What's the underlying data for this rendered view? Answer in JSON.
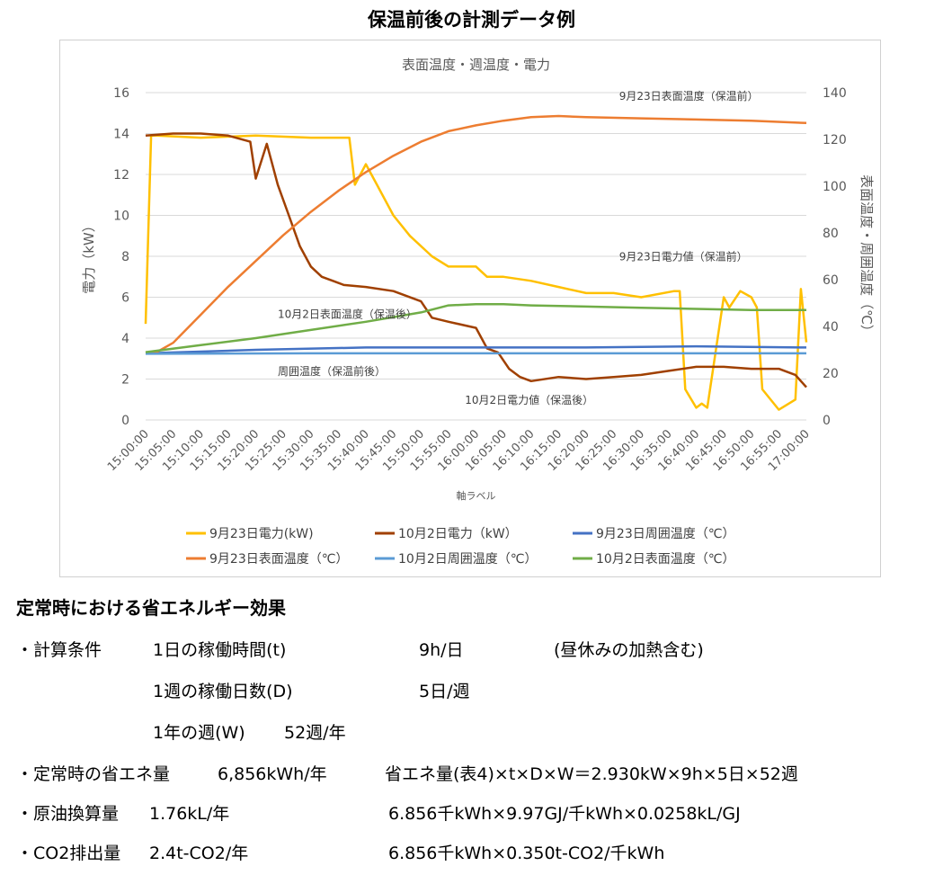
{
  "page_title": "保温前後の計測データ例",
  "chart_data": {
    "type": "line",
    "title": "表面温度・週温度・電力",
    "xlabel": "軸ラベル",
    "ylabel_left": "電力（kW）",
    "ylabel_right": "表面温度・周囲温度（℃）",
    "ylim_left": [
      0,
      16
    ],
    "ylim_right": [
      0,
      140
    ],
    "yticks_left": [
      "0",
      "2",
      "4",
      "6",
      "8",
      "10",
      "12",
      "14",
      "16"
    ],
    "yticks_right": [
      "0",
      "20",
      "40",
      "60",
      "80",
      "100",
      "120",
      "140"
    ],
    "grid": true,
    "legend_position": "bottom",
    "x_ticks": [
      "15:00:00",
      "15:05:00",
      "15:10:00",
      "15:15:00",
      "15:20:00",
      "15:25:00",
      "15:30:00",
      "15:35:00",
      "15:40:00",
      "15:45:00",
      "15:50:00",
      "15:55:00",
      "16:00:00",
      "16:05:00",
      "16:10:00",
      "16:15:00",
      "16:20:00",
      "16:25:00",
      "16:30:00",
      "16:35:00",
      "16:40:00",
      "16:45:00",
      "16:50:00",
      "16:55:00",
      "17:00:00"
    ],
    "x_minutes": [
      0,
      120
    ],
    "series": [
      {
        "name": "9月23日電力(kW)",
        "axis": "left",
        "color": "#FFC000",
        "x": [
          0,
          1,
          2,
          10,
          20,
          30,
          37,
          38,
          40,
          42,
          45,
          48,
          52,
          55,
          60,
          62,
          65,
          70,
          75,
          80,
          85,
          90,
          96,
          97,
          98,
          100,
          101,
          102,
          105,
          106,
          108,
          110,
          111,
          112,
          115,
          118,
          119,
          120
        ],
        "values": [
          4.7,
          13.9,
          13.9,
          13.8,
          13.9,
          13.8,
          13.8,
          11.5,
          12.5,
          11.5,
          10.0,
          9.0,
          8.0,
          7.5,
          7.5,
          7.0,
          7.0,
          6.8,
          6.5,
          6.2,
          6.2,
          6.0,
          6.3,
          6.3,
          1.5,
          0.6,
          0.8,
          0.6,
          6.0,
          5.5,
          6.3,
          6.0,
          5.5,
          1.5,
          0.5,
          1.0,
          6.4,
          3.8
        ]
      },
      {
        "name": "10月2日電力（kW）",
        "axis": "left",
        "color": "#A04000",
        "x": [
          0,
          5,
          10,
          15,
          19,
          20,
          22,
          23,
          24,
          26,
          28,
          30,
          32,
          34,
          36,
          40,
          45,
          50,
          52,
          55,
          60,
          62,
          64,
          66,
          68,
          70,
          75,
          80,
          85,
          90,
          95,
          100,
          105,
          110,
          115,
          118,
          120
        ],
        "values": [
          13.9,
          14.0,
          14.0,
          13.9,
          13.6,
          11.8,
          13.5,
          12.5,
          11.5,
          10.0,
          8.5,
          7.5,
          7.0,
          6.8,
          6.6,
          6.5,
          6.3,
          5.8,
          5.0,
          4.8,
          4.5,
          3.5,
          3.3,
          2.5,
          2.1,
          1.9,
          2.1,
          2.0,
          2.1,
          2.2,
          2.4,
          2.6,
          2.6,
          2.5,
          2.5,
          2.2,
          1.6
        ]
      },
      {
        "name": "9月23日周囲温度（℃）",
        "axis": "right",
        "color": "#4472C4",
        "x": [
          0,
          20,
          40,
          60,
          80,
          100,
          120
        ],
        "values": [
          28.5,
          30,
          31,
          31,
          31,
          31.5,
          31
        ]
      },
      {
        "name": "9月23日表面温度（℃）",
        "axis": "right",
        "color": "#ED7D31",
        "x": [
          0,
          2,
          5,
          10,
          15,
          20,
          25,
          30,
          35,
          40,
          45,
          50,
          55,
          60,
          65,
          70,
          75,
          80,
          90,
          100,
          110,
          120
        ],
        "values": [
          28.5,
          29,
          33,
          45,
          57,
          68,
          79,
          89,
          98,
          106,
          113,
          119,
          123.5,
          126,
          128,
          129.5,
          130,
          129.5,
          129,
          128.5,
          128,
          127
        ]
      },
      {
        "name": "10月2日周囲温度（℃）",
        "axis": "right",
        "color": "#5B9BD5",
        "x": [
          0,
          30,
          60,
          90,
          120
        ],
        "values": [
          28.3,
          28.5,
          28.5,
          28.5,
          28.5
        ]
      },
      {
        "name": "10月2日表面温度（℃）",
        "axis": "right",
        "color": "#70AD47",
        "x": [
          0,
          10,
          20,
          30,
          40,
          45,
          50,
          55,
          60,
          65,
          70,
          80,
          90,
          100,
          110,
          120
        ],
        "values": [
          29,
          32,
          35,
          38.5,
          42,
          44,
          46,
          49,
          49.5,
          49.5,
          49,
          48.5,
          48,
          47.5,
          47,
          47
        ]
      }
    ],
    "annotations": [
      {
        "text": "9月23日表面温度（保温前）",
        "x": 86,
        "y": 137,
        "axis": "right"
      },
      {
        "text": "9月23日電力値（保温前）",
        "x": 86,
        "y": 7.8,
        "axis": "left"
      },
      {
        "text": "10月2日表面温度（保温後）",
        "x": 24,
        "y": 5.0,
        "axis": "left"
      },
      {
        "text": "周囲温度（保温前後）",
        "x": 24,
        "y": 2.2,
        "axis": "left"
      },
      {
        "text": "10月2日電力値（保温後）",
        "x": 58,
        "y": 0.8,
        "axis": "left"
      }
    ]
  },
  "effect": {
    "title": "定常時における省エネルギー効果",
    "rows": [
      [
        "・計算条件",
        "1日の稼働時間(t)",
        "9h/日",
        "(昼休みの加熱含む)"
      ],
      [
        "1週の稼働日数(D)",
        "5日/週"
      ],
      [
        "1年の週(W)",
        "52週/年"
      ],
      [
        "・定常時の省エネ量",
        "6,856kWh/年",
        "省エネ量(表4)×t×D×W＝2.930kW×9h×5日×52週"
      ],
      [
        "・原油換算量",
        "1.76kL/年",
        "6.856千kWh×9.97GJ/千kWh×0.0258kL/GJ"
      ],
      [
        "・CO2排出量",
        "2.4t-CO2/年",
        "6.856千kWh×0.350t-CO2/千kWh"
      ]
    ]
  }
}
